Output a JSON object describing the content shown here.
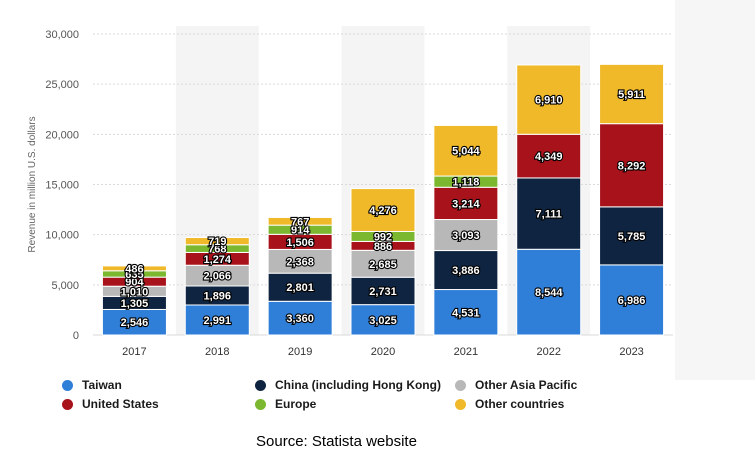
{
  "chart_data": {
    "type": "bar",
    "stacked": true,
    "categories": [
      "2017",
      "2018",
      "2019",
      "2020",
      "2021",
      "2022",
      "2023"
    ],
    "ylabel": "Revenue in million U.S. dollars",
    "ylim": [
      0,
      30000
    ],
    "yticks": [
      "0",
      "5,000",
      "10,000",
      "15,000",
      "20,000",
      "25,000",
      "30,000"
    ],
    "ytick_values": [
      0,
      5000,
      10000,
      15000,
      20000,
      25000,
      30000
    ],
    "grid": true,
    "legend_position": "bottom",
    "series": [
      {
        "name": "Taiwan",
        "color": "#2f7ed8",
        "values": [
          2546,
          2991,
          3360,
          3025,
          4531,
          8544,
          6986
        ],
        "labels": [
          "2,546",
          "2,991",
          "3,360",
          "3,025",
          "4,531",
          "8,544",
          "6,986"
        ]
      },
      {
        "name": "China (including Hong Kong)",
        "color": "#0f2440",
        "values": [
          1305,
          1896,
          2801,
          2731,
          3886,
          7111,
          5785
        ],
        "labels": [
          "1,305",
          "1,896",
          "2,801",
          "2,731",
          "3,886",
          "7,111",
          "5,785"
        ]
      },
      {
        "name": "Other Asia Pacific",
        "color": "#b8b8b8",
        "values": [
          1010,
          2066,
          2368,
          2685,
          3093,
          0,
          0
        ],
        "labels": [
          "1,010",
          "2,066",
          "2,368",
          "2,685",
          "3,093",
          "",
          ""
        ]
      },
      {
        "name": "United States",
        "color": "#a8121b",
        "values": [
          904,
          1274,
          1506,
          886,
          3214,
          4349,
          8292
        ],
        "labels": [
          "904",
          "1,274",
          "1,506",
          "886",
          "3,214",
          "4,349",
          "8,292"
        ]
      },
      {
        "name": "Europe",
        "color": "#7cb82f",
        "values": [
          635,
          768,
          914,
          992,
          1118,
          0,
          0
        ],
        "labels": [
          "635",
          "768",
          "914",
          "992",
          "1,118",
          "",
          ""
        ]
      },
      {
        "name": "Other countries",
        "color": "#f0b929",
        "values": [
          486,
          719,
          767,
          4276,
          5044,
          6910,
          5911
        ],
        "labels": [
          "486",
          "719",
          "767",
          "4,276",
          "5,044",
          "6,910",
          "5,911"
        ]
      }
    ]
  },
  "legend": [
    {
      "label": "Taiwan",
      "color": "#2f7ed8"
    },
    {
      "label": "China (including Hong Kong)",
      "color": "#0f2440"
    },
    {
      "label": "Other Asia Pacific",
      "color": "#b8b8b8"
    },
    {
      "label": "United States",
      "color": "#a8121b"
    },
    {
      "label": "Europe",
      "color": "#7cb82f"
    },
    {
      "label": "Other countries",
      "color": "#f0b929"
    }
  ],
  "source": "Source: Statista website"
}
